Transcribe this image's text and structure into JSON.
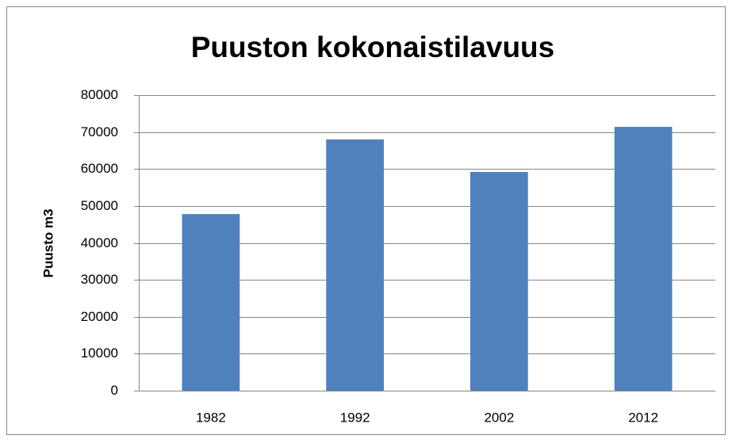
{
  "chart_data": {
    "type": "bar",
    "title": "Puuston kokonaistilavuus",
    "y_label": "Puusto m3",
    "categories": [
      "1982",
      "1992",
      "2002",
      "2012"
    ],
    "values": [
      47800,
      68000,
      59200,
      71400
    ],
    "color": "#4f81bd",
    "ylim": [
      0,
      80000
    ],
    "yticks": [
      0,
      10000,
      20000,
      30000,
      40000,
      50000,
      60000,
      70000,
      80000
    ],
    "grid": true
  }
}
